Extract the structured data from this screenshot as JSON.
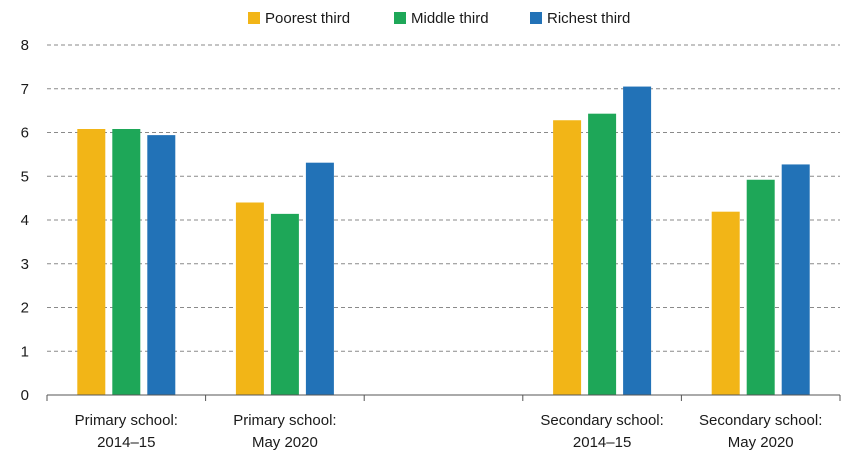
{
  "chart_data": {
    "type": "bar",
    "title": "",
    "xlabel": "",
    "ylabel": "",
    "ylim": [
      0,
      8
    ],
    "yticks": [
      0,
      1,
      2,
      3,
      4,
      5,
      6,
      7,
      8
    ],
    "grid": true,
    "legend_position": "top-center",
    "categories": [
      [
        "Primary school:",
        "2014–15"
      ],
      [
        "Primary school:",
        "May 2020"
      ],
      [
        "",
        ""
      ],
      [
        "Secondary school:",
        "2014–15"
      ],
      [
        "Secondary school:",
        "May 2020"
      ]
    ],
    "series": [
      {
        "name": "Poorest third",
        "color": "#F2B517",
        "values": [
          6.08,
          4.4,
          null,
          6.28,
          4.19
        ]
      },
      {
        "name": "Middle third",
        "color": "#1EA758",
        "values": [
          6.08,
          4.14,
          null,
          6.43,
          4.92
        ]
      },
      {
        "name": "Richest third",
        "color": "#2272B7",
        "values": [
          5.94,
          5.31,
          null,
          7.05,
          5.27
        ]
      }
    ]
  }
}
